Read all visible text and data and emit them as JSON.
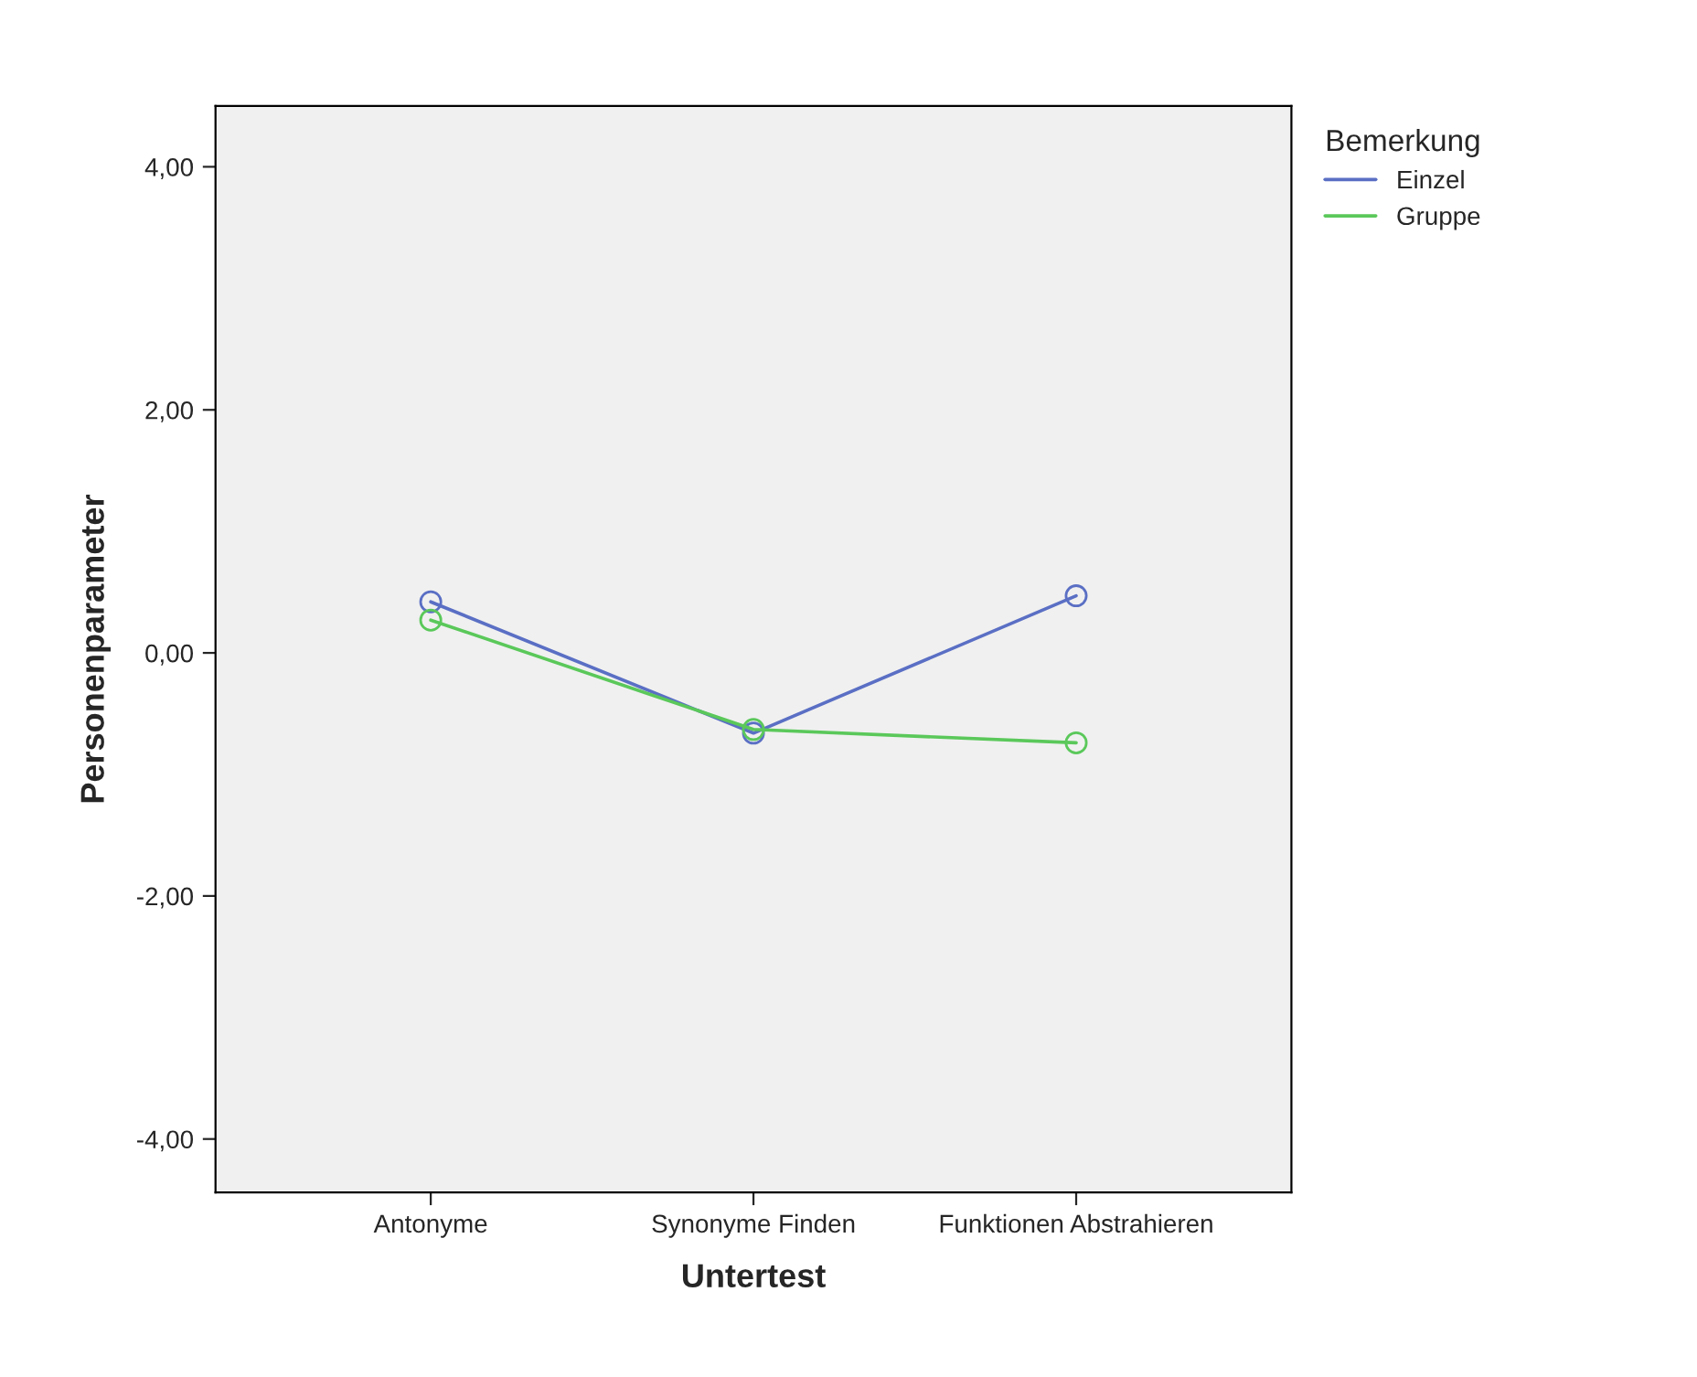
{
  "chart_data": {
    "type": "line",
    "xlabel": "Untertest",
    "ylabel": "Personenparameter",
    "legend_title": "Bemerkung",
    "legend": "right",
    "marker": "circle",
    "line_style": "solid",
    "grid": false,
    "categories": [
      "Antonyme",
      "Synonyme Finden",
      "Funktionen Abstrahieren"
    ],
    "ylim": [
      -4.44,
      4.5
    ],
    "yticks": [
      {
        "value": -4,
        "label": "-4,00"
      },
      {
        "value": -2,
        "label": "-2,00"
      },
      {
        "value": 0,
        "label": "0,00"
      },
      {
        "value": 2,
        "label": "2,00"
      },
      {
        "value": 4,
        "label": "4,00"
      }
    ],
    "series": [
      {
        "name": "Einzel",
        "color": "#5a6fc4",
        "values": [
          0.42,
          -0.66,
          0.47
        ]
      },
      {
        "name": "Gruppe",
        "color": "#5ac85a",
        "values": [
          0.27,
          -0.63,
          -0.74
        ]
      }
    ]
  }
}
